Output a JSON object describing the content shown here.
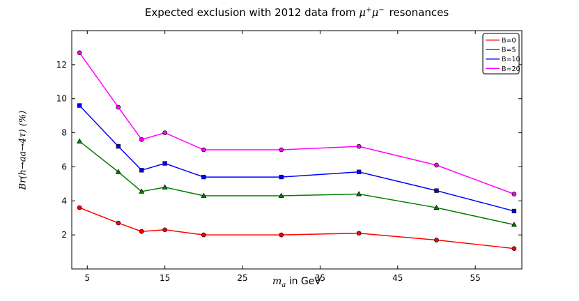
{
  "figure": {
    "title": {
      "prefix": "Expected exclusion with 2012 data from ",
      "mu1": "μ",
      "sup1": "+",
      "mu2": "μ",
      "sup2": "−",
      "suffix": "resonances"
    },
    "xlabel": {
      "var": "m",
      "sub": "a",
      "rest": " in GeV"
    },
    "ylabel": {
      "text": "Br(h→aa→4τ) (%)"
    }
  },
  "chart_data": {
    "type": "line",
    "title": "Expected exclusion with 2012 data from μ+μ− resonances",
    "xlabel": "m_a in GeV",
    "ylabel": "Br(h→aa→4τ) (%)",
    "x": [
      4,
      9,
      12,
      15,
      20,
      30,
      40,
      50,
      60
    ],
    "series": [
      {
        "name": "B=0",
        "color": "#ff0000",
        "marker": "circle",
        "values": [
          3.6,
          2.7,
          2.2,
          2.3,
          2.0,
          2.0,
          2.1,
          1.7,
          1.2
        ]
      },
      {
        "name": "B=5",
        "color": "#007f00",
        "marker": "triangle",
        "values": [
          7.5,
          5.7,
          4.55,
          4.8,
          4.3,
          4.3,
          4.4,
          3.6,
          2.6
        ]
      },
      {
        "name": "B=10",
        "color": "#0000ff",
        "marker": "square",
        "values": [
          9.6,
          7.2,
          5.8,
          6.2,
          5.4,
          5.4,
          5.7,
          4.6,
          3.4
        ]
      },
      {
        "name": "B=20",
        "color": "#ff00ff",
        "marker": "circle",
        "values": [
          12.7,
          9.5,
          7.6,
          8.0,
          7.0,
          7.0,
          7.2,
          6.1,
          4.4
        ]
      }
    ],
    "xlim": [
      3,
      61
    ],
    "ylim": [
      0,
      14
    ],
    "xticks": [
      5,
      15,
      25,
      35,
      45,
      55
    ],
    "yticks": [
      2,
      4,
      6,
      8,
      10,
      12
    ],
    "grid": false,
    "legend_position": "top-right",
    "axis_color": "#000000",
    "background_color": "#ffffff"
  }
}
